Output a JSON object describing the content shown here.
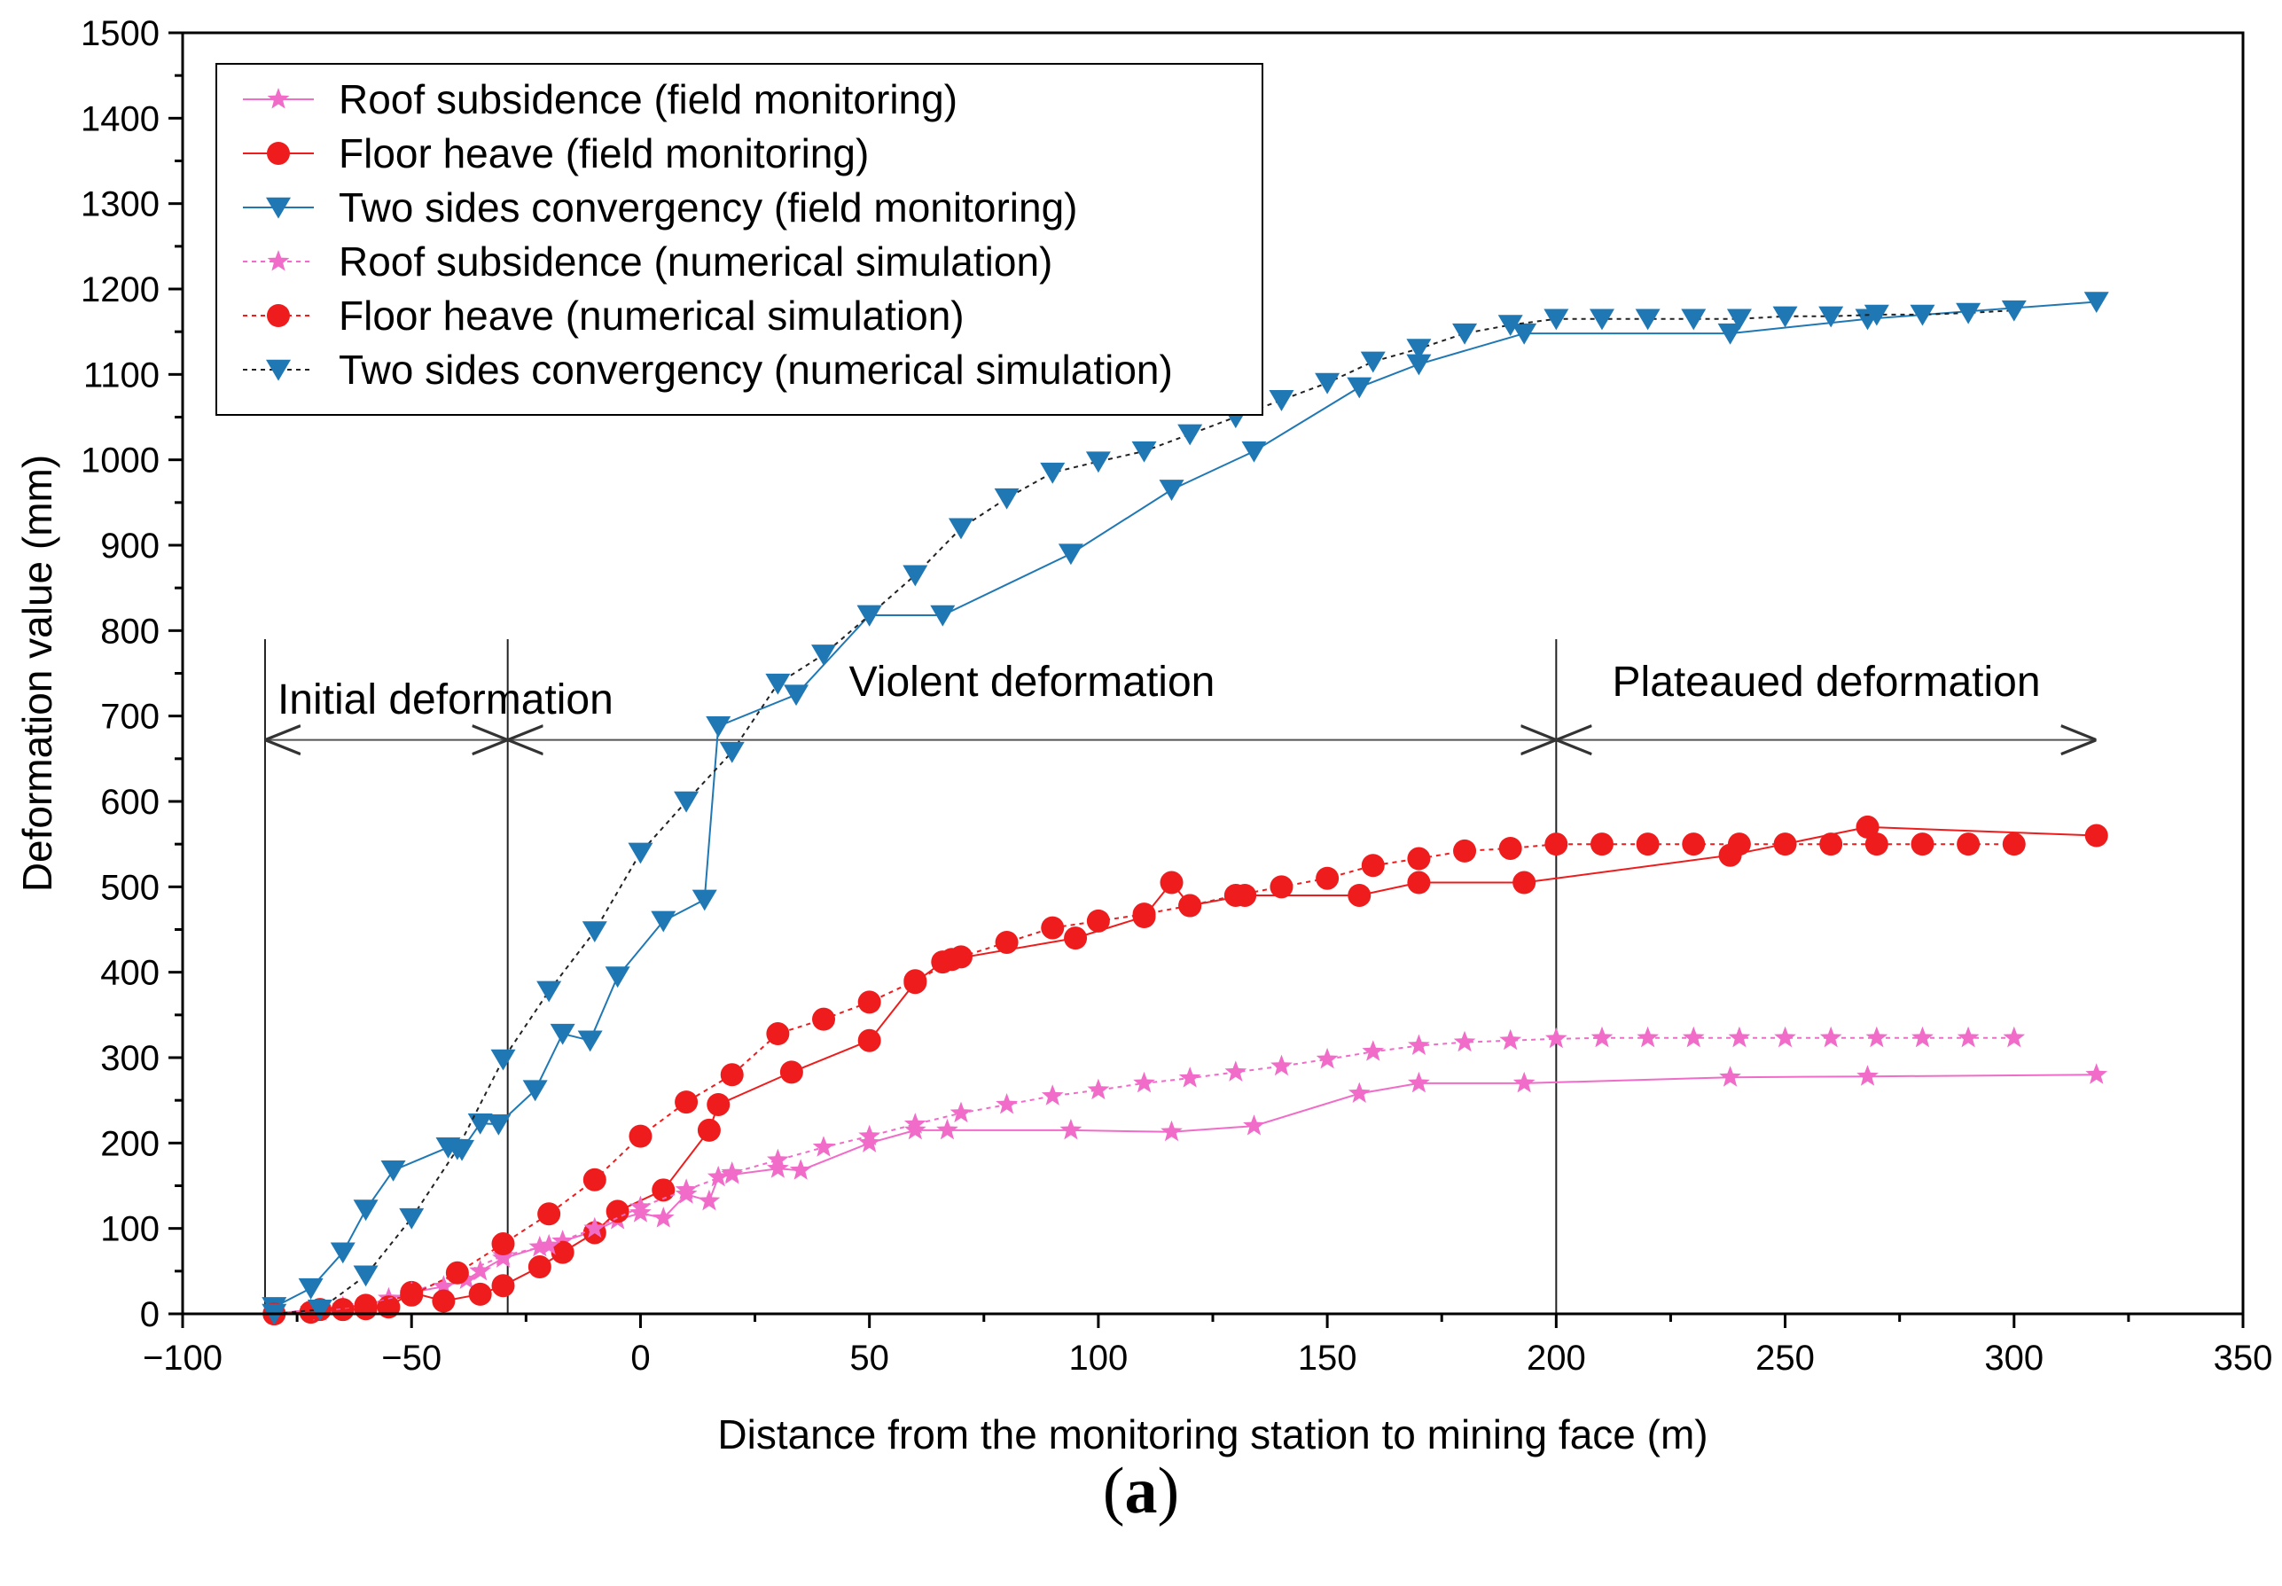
{
  "chart_data": {
    "type": "line",
    "xlabel": "Distance from the monitoring station to mining face (m)",
    "ylabel": "Deformation value (mm)",
    "xlim": [
      -100,
      350
    ],
    "ylim": [
      0,
      1500
    ],
    "xticks": [
      -100,
      -50,
      0,
      50,
      100,
      150,
      200,
      250,
      300,
      350
    ],
    "yticks": [
      0,
      100,
      200,
      300,
      400,
      500,
      600,
      700,
      800,
      900,
      1000,
      1100,
      1200,
      1300,
      1400,
      1500
    ],
    "legend_position": "top-left",
    "stage_boundaries": [
      -82,
      -29,
      200,
      318
    ],
    "stage_arrow_y": 672,
    "stages": [
      {
        "label": "Initial deformation",
        "from": -82,
        "to": -29
      },
      {
        "label": "Violent deformation",
        "from": -29,
        "to": 200
      },
      {
        "label": "Plateaued deformation",
        "from": 200,
        "to": 318
      }
    ],
    "series": [
      {
        "name": "Roof subsidence (field monitoring)",
        "color": "#f06cc8",
        "marker": "star",
        "dashed": false,
        "x": [
          -80,
          -72,
          -65,
          -60,
          -55,
          -50,
          -43,
          -38,
          -35,
          -30,
          -22,
          -17,
          -10,
          -5,
          0,
          5,
          10,
          15,
          17,
          20,
          30,
          35,
          50,
          60,
          67,
          94,
          116,
          134,
          157,
          170,
          193,
          238,
          268,
          318
        ],
        "y": [
          0,
          5,
          8,
          10,
          18,
          25,
          32,
          40,
          50,
          65,
          78,
          85,
          97,
          110,
          118,
          112,
          140,
          132,
          160,
          163,
          170,
          168,
          200,
          215,
          215,
          215,
          213,
          220,
          258,
          270,
          270,
          277,
          278,
          280
        ]
      },
      {
        "name": "Floor heave (field monitoring)",
        "color": "#ee1c1c",
        "marker": "circle",
        "dashed": false,
        "x": [
          -80,
          -72,
          -65,
          -60,
          -55,
          -50,
          -43,
          -35,
          -30,
          -22,
          -17,
          -10,
          -5,
          5,
          15,
          17,
          33,
          50,
          60,
          66,
          68,
          95,
          110,
          116,
          120,
          132,
          157,
          170,
          193,
          238,
          268,
          318
        ],
        "y": [
          0,
          2,
          5,
          6,
          8,
          25,
          15,
          23,
          33,
          55,
          72,
          95,
          120,
          145,
          215,
          245,
          283,
          320,
          388,
          412,
          415,
          440,
          465,
          505,
          478,
          490,
          490,
          505,
          505,
          537,
          570,
          560
        ]
      },
      {
        "name": "Two sides convergency (field monitoring)",
        "color": "#1f78b4",
        "marker": "triangle-down",
        "dashed": false,
        "x": [
          -80,
          -72,
          -65,
          -60,
          -54,
          -42,
          -39,
          -35,
          -31,
          -23,
          -17,
          -11,
          -5,
          5,
          14,
          17,
          34,
          50,
          66,
          94,
          116,
          134,
          157,
          170,
          193,
          238,
          268,
          318
        ],
        "y": [
          8,
          30,
          72,
          122,
          168,
          195,
          192,
          223,
          222,
          262,
          328,
          320,
          395,
          460,
          485,
          688,
          725,
          818,
          818,
          890,
          965,
          1010,
          1085,
          1112,
          1148,
          1148,
          1165,
          1185
        ]
      },
      {
        "name": "Roof subsidence (numerical simulation)",
        "color": "#f06cc8",
        "marker": "star",
        "dashed": true,
        "x": [
          -80,
          -70,
          -60,
          -50,
          -40,
          -30,
          -20,
          -10,
          0,
          10,
          20,
          30,
          40,
          50,
          60,
          70,
          80,
          90,
          100,
          110,
          120,
          130,
          140,
          150,
          160,
          170,
          180,
          190,
          200,
          210,
          220,
          230,
          240,
          250,
          260,
          270,
          280,
          290,
          300
        ],
        "y": [
          0,
          3,
          10,
          25,
          45,
          68,
          80,
          100,
          125,
          145,
          165,
          180,
          195,
          208,
          222,
          235,
          245,
          255,
          262,
          270,
          276,
          283,
          290,
          298,
          307,
          314,
          318,
          320,
          322,
          323,
          323,
          323,
          323,
          323,
          323,
          323,
          323,
          323,
          323
        ]
      },
      {
        "name": "Floor heave (numerical simulation)",
        "color": "#ee1c1c",
        "marker": "circle",
        "dashed": true,
        "x": [
          -80,
          -70,
          -60,
          -50,
          -40,
          -30,
          -20,
          -10,
          0,
          10,
          20,
          30,
          40,
          50,
          60,
          70,
          80,
          90,
          100,
          110,
          120,
          130,
          140,
          150,
          160,
          170,
          180,
          190,
          200,
          210,
          220,
          230,
          240,
          250,
          260,
          270,
          280,
          290,
          300
        ],
        "y": [
          0,
          5,
          10,
          22,
          48,
          82,
          117,
          157,
          208,
          248,
          280,
          328,
          345,
          365,
          390,
          418,
          435,
          452,
          460,
          468,
          478,
          490,
          500,
          510,
          525,
          533,
          542,
          545,
          550,
          550,
          550,
          550,
          550,
          550,
          550,
          550,
          550,
          550,
          550
        ]
      },
      {
        "name": "Two sides convergency (numerical simulation)",
        "color": "#1f78b4",
        "marker": "triangle-down",
        "dashed": true,
        "x": [
          -80,
          -70,
          -60,
          -50,
          -40,
          -30,
          -20,
          -10,
          0,
          10,
          20,
          30,
          40,
          50,
          60,
          70,
          80,
          90,
          100,
          110,
          120,
          130,
          140,
          150,
          160,
          170,
          180,
          190,
          200,
          210,
          220,
          230,
          240,
          250,
          260,
          270,
          280,
          290,
          300
        ],
        "y": [
          0,
          5,
          45,
          112,
          193,
          298,
          378,
          448,
          540,
          600,
          658,
          738,
          772,
          818,
          865,
          920,
          955,
          985,
          998,
          1010,
          1030,
          1050,
          1070,
          1090,
          1115,
          1130,
          1148,
          1158,
          1165,
          1165,
          1165,
          1165,
          1165,
          1168,
          1168,
          1170,
          1170,
          1172,
          1175
        ]
      }
    ]
  },
  "caption": {
    "open": "(",
    "letter": "a",
    "close": ")"
  }
}
